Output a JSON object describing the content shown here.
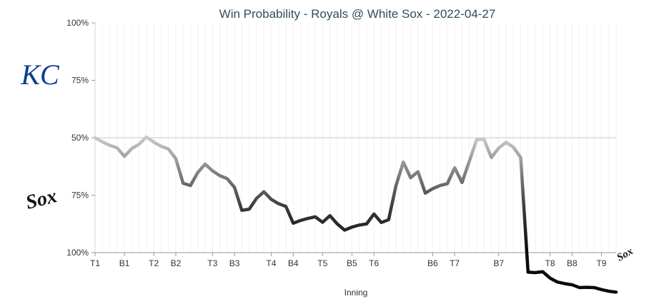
{
  "chart_data": {
    "type": "line",
    "title": "Win Probability - Royals @ White Sox - 2022-04-27",
    "xlabel": "Inning",
    "ylabel": "",
    "y_tick_labels": [
      "100%",
      "75%",
      "50%",
      "75%",
      "100%"
    ],
    "ylim": [
      0,
      100
    ],
    "grid": true,
    "baseline": 50,
    "x_tick_labels": [
      "T1",
      "B1",
      "T2",
      "B2",
      "T3",
      "B3",
      "T4",
      "B4",
      "T5",
      "B5",
      "T6",
      "B6",
      "T7",
      "B7",
      "T8",
      "B8",
      "T9"
    ],
    "x_tick_positions": [
      0,
      4,
      8,
      11,
      16,
      19,
      24,
      27,
      31,
      35,
      38,
      46,
      49,
      55,
      62,
      65,
      69
    ],
    "series": [
      {
        "values": [
          50,
          48.2,
          46.7,
          45.6,
          41.9,
          45.3,
          47.2,
          50.3,
          48.1,
          46.3,
          45.1,
          40.9,
          30.2,
          29.2,
          34.9,
          38.5,
          35.6,
          33.5,
          32.2,
          28.4,
          18.4,
          18.9,
          23.6,
          26.5,
          23.2,
          21.3,
          20.1,
          12.8,
          14.0,
          14.9,
          15.6,
          13.2,
          16.1,
          12.5,
          9.8,
          11.1,
          12.0,
          12.5,
          16.8,
          13.1,
          14.3,
          29.1,
          39.4,
          32.6,
          35.2,
          25.9,
          27.8,
          29.2,
          30.0,
          36.9,
          30.5,
          39.8,
          49.2,
          49.3,
          41.4,
          45.5,
          48.0,
          45.9,
          41.4,
          -8.5,
          -8.7,
          -8.3,
          -11.1,
          -12.8,
          -13.5,
          -14.0,
          -15.2,
          -15.1,
          -15.2,
          -16.1,
          -16.8,
          -17.2
        ]
      }
    ],
    "team_colors": {
      "royals": "#0a3d8f",
      "white_sox": "#111111"
    },
    "icons": {
      "top": "royals-logo-icon",
      "bottom": "white-sox-logo-icon",
      "end": "white-sox-end-icon"
    },
    "logo_text": {
      "royals": "KC",
      "white_sox": "Sox"
    }
  }
}
